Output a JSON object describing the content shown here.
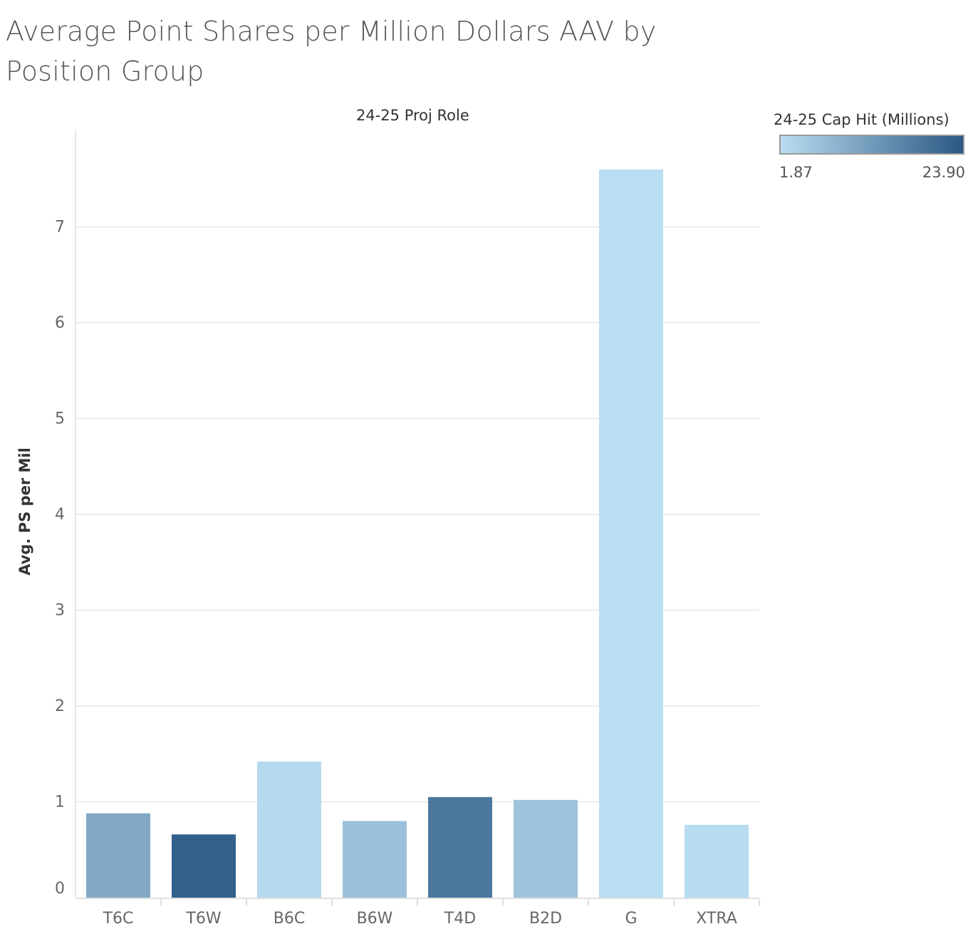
{
  "chart_data": {
    "type": "bar",
    "title": "Average Point Shares per Million Dollars AAV by Position Group",
    "header": "24-25 Proj Role",
    "xlabel": "",
    "ylabel": "Avg. PS per Mil",
    "categories": [
      "T6C",
      "T6W",
      "B6C",
      "B6W",
      "T4D",
      "B2D",
      "G",
      "XTRA"
    ],
    "values": [
      0.88,
      0.66,
      1.42,
      0.8,
      1.05,
      1.02,
      7.6,
      0.76
    ],
    "color_values": [
      10.5,
      22.5,
      2.5,
      6.5,
      18.5,
      6.0,
      1.87,
      2.0
    ],
    "ylim": [
      0,
      7.8
    ],
    "yticks": [
      0,
      1,
      2,
      3,
      4,
      5,
      6,
      7
    ],
    "legend": {
      "title": "24-25 Cap Hit (Millions)",
      "min_label": "1.87",
      "max_label": "23.90",
      "min": 1.87,
      "max": 23.9,
      "color_low": "#b9ddf1",
      "color_high": "#2a5783"
    },
    "grid": true
  }
}
